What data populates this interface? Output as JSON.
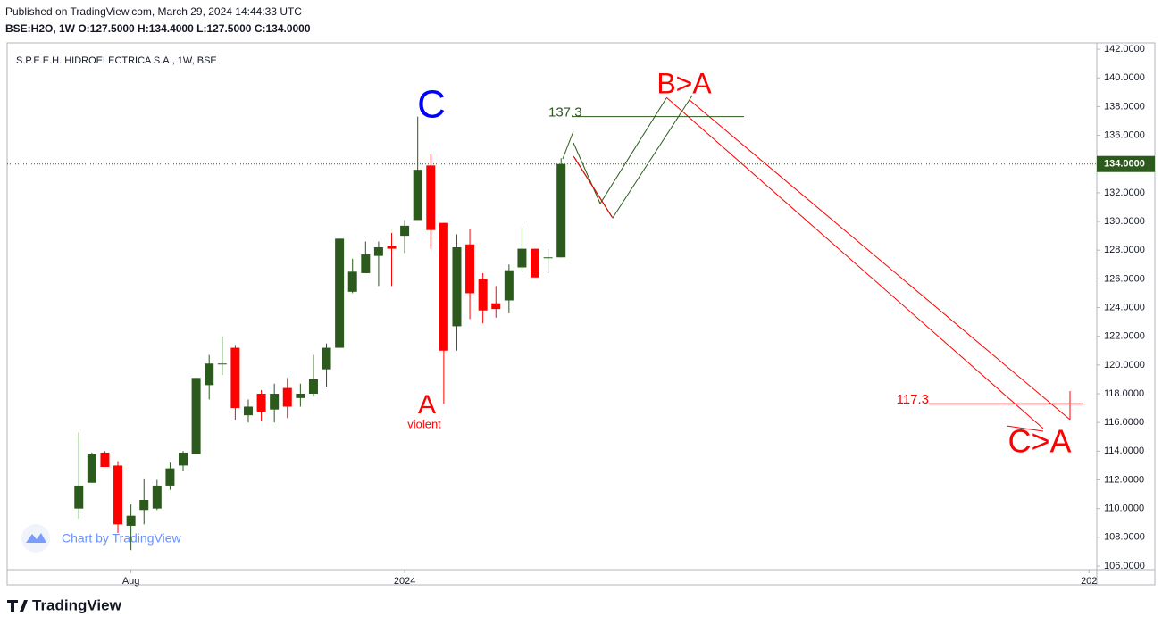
{
  "header": {
    "published": "Published on TradingView.com, March 29, 2024 14:44:33 UTC",
    "ohlc": "BSE:H2O, 1W  O:127.5000 H:134.4000 L:127.5000 C:134.0000"
  },
  "chart_data": {
    "type": "candlestick",
    "title": "S.P.E.E.H. HIDROELECTRICA S.A., 1W, BSE",
    "open": [
      110.0,
      111.8,
      113.9,
      113.0,
      108.8,
      109.9,
      110.0,
      111.6,
      113.0,
      113.8,
      118.6,
      120.1,
      121.2,
      116.5,
      118.0,
      116.9,
      118.4,
      117.7,
      118.0,
      119.7,
      121.2,
      125.1,
      126.4,
      127.6,
      128.3,
      129.0,
      130.1,
      133.9,
      129.9,
      122.7,
      128.4,
      126.0,
      124.3,
      124.5,
      126.8,
      128.1,
      127.5,
      127.5
    ],
    "high": [
      115.3,
      113.9,
      114.0,
      113.3,
      110.3,
      112.1,
      112.0,
      113.2,
      114.0,
      119.1,
      120.7,
      122.0,
      121.4,
      117.6,
      118.25,
      118.7,
      119.1,
      118.7,
      120.7,
      121.5,
      128.8,
      127.4,
      128.6,
      128.6,
      129.2,
      130.1,
      137.3,
      134.7,
      129.9,
      129.1,
      129.5,
      126.4,
      125.5,
      127.0,
      129.6,
      128.1,
      128.1,
      134.4
    ],
    "low": [
      109.3,
      111.8,
      112.9,
      108.3,
      107.1,
      108.9,
      109.9,
      111.3,
      112.6,
      113.8,
      117.6,
      119.3,
      116.2,
      116.0,
      116.07,
      116.0,
      116.3,
      117.1,
      117.8,
      118.5,
      121.2,
      125.0,
      126.4,
      125.5,
      125.5,
      127.8,
      130.1,
      128.1,
      117.3,
      121.0,
      123.2,
      122.9,
      123.3,
      123.6,
      126.5,
      126.1,
      126.4,
      127.5
    ],
    "close": [
      111.6,
      113.8,
      112.9,
      108.9,
      109.5,
      110.6,
      111.6,
      112.8,
      113.9,
      119.1,
      120.1,
      120.1,
      117.0,
      117.1,
      116.75,
      118.0,
      117.1,
      118.0,
      119.0,
      121.2,
      128.8,
      126.5,
      127.7,
      128.2,
      128.1,
      129.7,
      133.6,
      129.4,
      121.0,
      128.2,
      125.0,
      123.8,
      123.9,
      126.6,
      128.1,
      126.1,
      127.5,
      134.0
    ],
    "up_color": "#2b5a1c",
    "down_color": "#ff0000",
    "xlim": [
      -5.5,
      78.1
    ],
    "xticks": [
      {
        "value": 4,
        "label": "Aug"
      },
      {
        "value": 25,
        "label": "2024"
      },
      {
        "value": 77.5,
        "label": "202"
      }
    ],
    "ylim": [
      105.75,
      142.44
    ],
    "yticks": [
      {
        "value": 106,
        "label": "106.0000"
      },
      {
        "value": 108,
        "label": "108.0000"
      },
      {
        "value": 110,
        "label": "110.0000"
      },
      {
        "value": 112,
        "label": "112.0000"
      },
      {
        "value": 114,
        "label": "114.0000"
      },
      {
        "value": 116,
        "label": "116.0000"
      },
      {
        "value": 118,
        "label": "118.0000"
      },
      {
        "value": 120,
        "label": "120.0000"
      },
      {
        "value": 122,
        "label": "122.0000"
      },
      {
        "value": 124,
        "label": "124.0000"
      },
      {
        "value": 126,
        "label": "126.0000"
      },
      {
        "value": 128,
        "label": "128.0000"
      },
      {
        "value": 130,
        "label": "130.0000"
      },
      {
        "value": 132,
        "label": "132.0000"
      },
      {
        "value": 134,
        "label": "134.0000"
      },
      {
        "value": 136,
        "label": "136.0000"
      },
      {
        "value": 138,
        "label": "138.0000"
      },
      {
        "value": 140,
        "label": "140.0000"
      },
      {
        "value": 142,
        "label": "142.0000"
      }
    ],
    "last_price": {
      "value": 134,
      "label": "134.0000"
    },
    "levels": [
      {
        "value": 137.3,
        "color": "#2b5a1c"
      },
      {
        "value": 117.3,
        "color": "#ff0000"
      }
    ],
    "annotations": [
      {
        "text": "C",
        "color": "#0000ff"
      },
      {
        "text": "A",
        "color": "#ff0000"
      },
      {
        "text": "violent",
        "color": "#ff0000"
      },
      {
        "text": "B>A",
        "color": "#ff0000"
      },
      {
        "text": "C>A",
        "color": "#ff0000"
      }
    ],
    "watermark": "Chart by TradingView"
  },
  "footer": {
    "brand": "TradingView"
  }
}
